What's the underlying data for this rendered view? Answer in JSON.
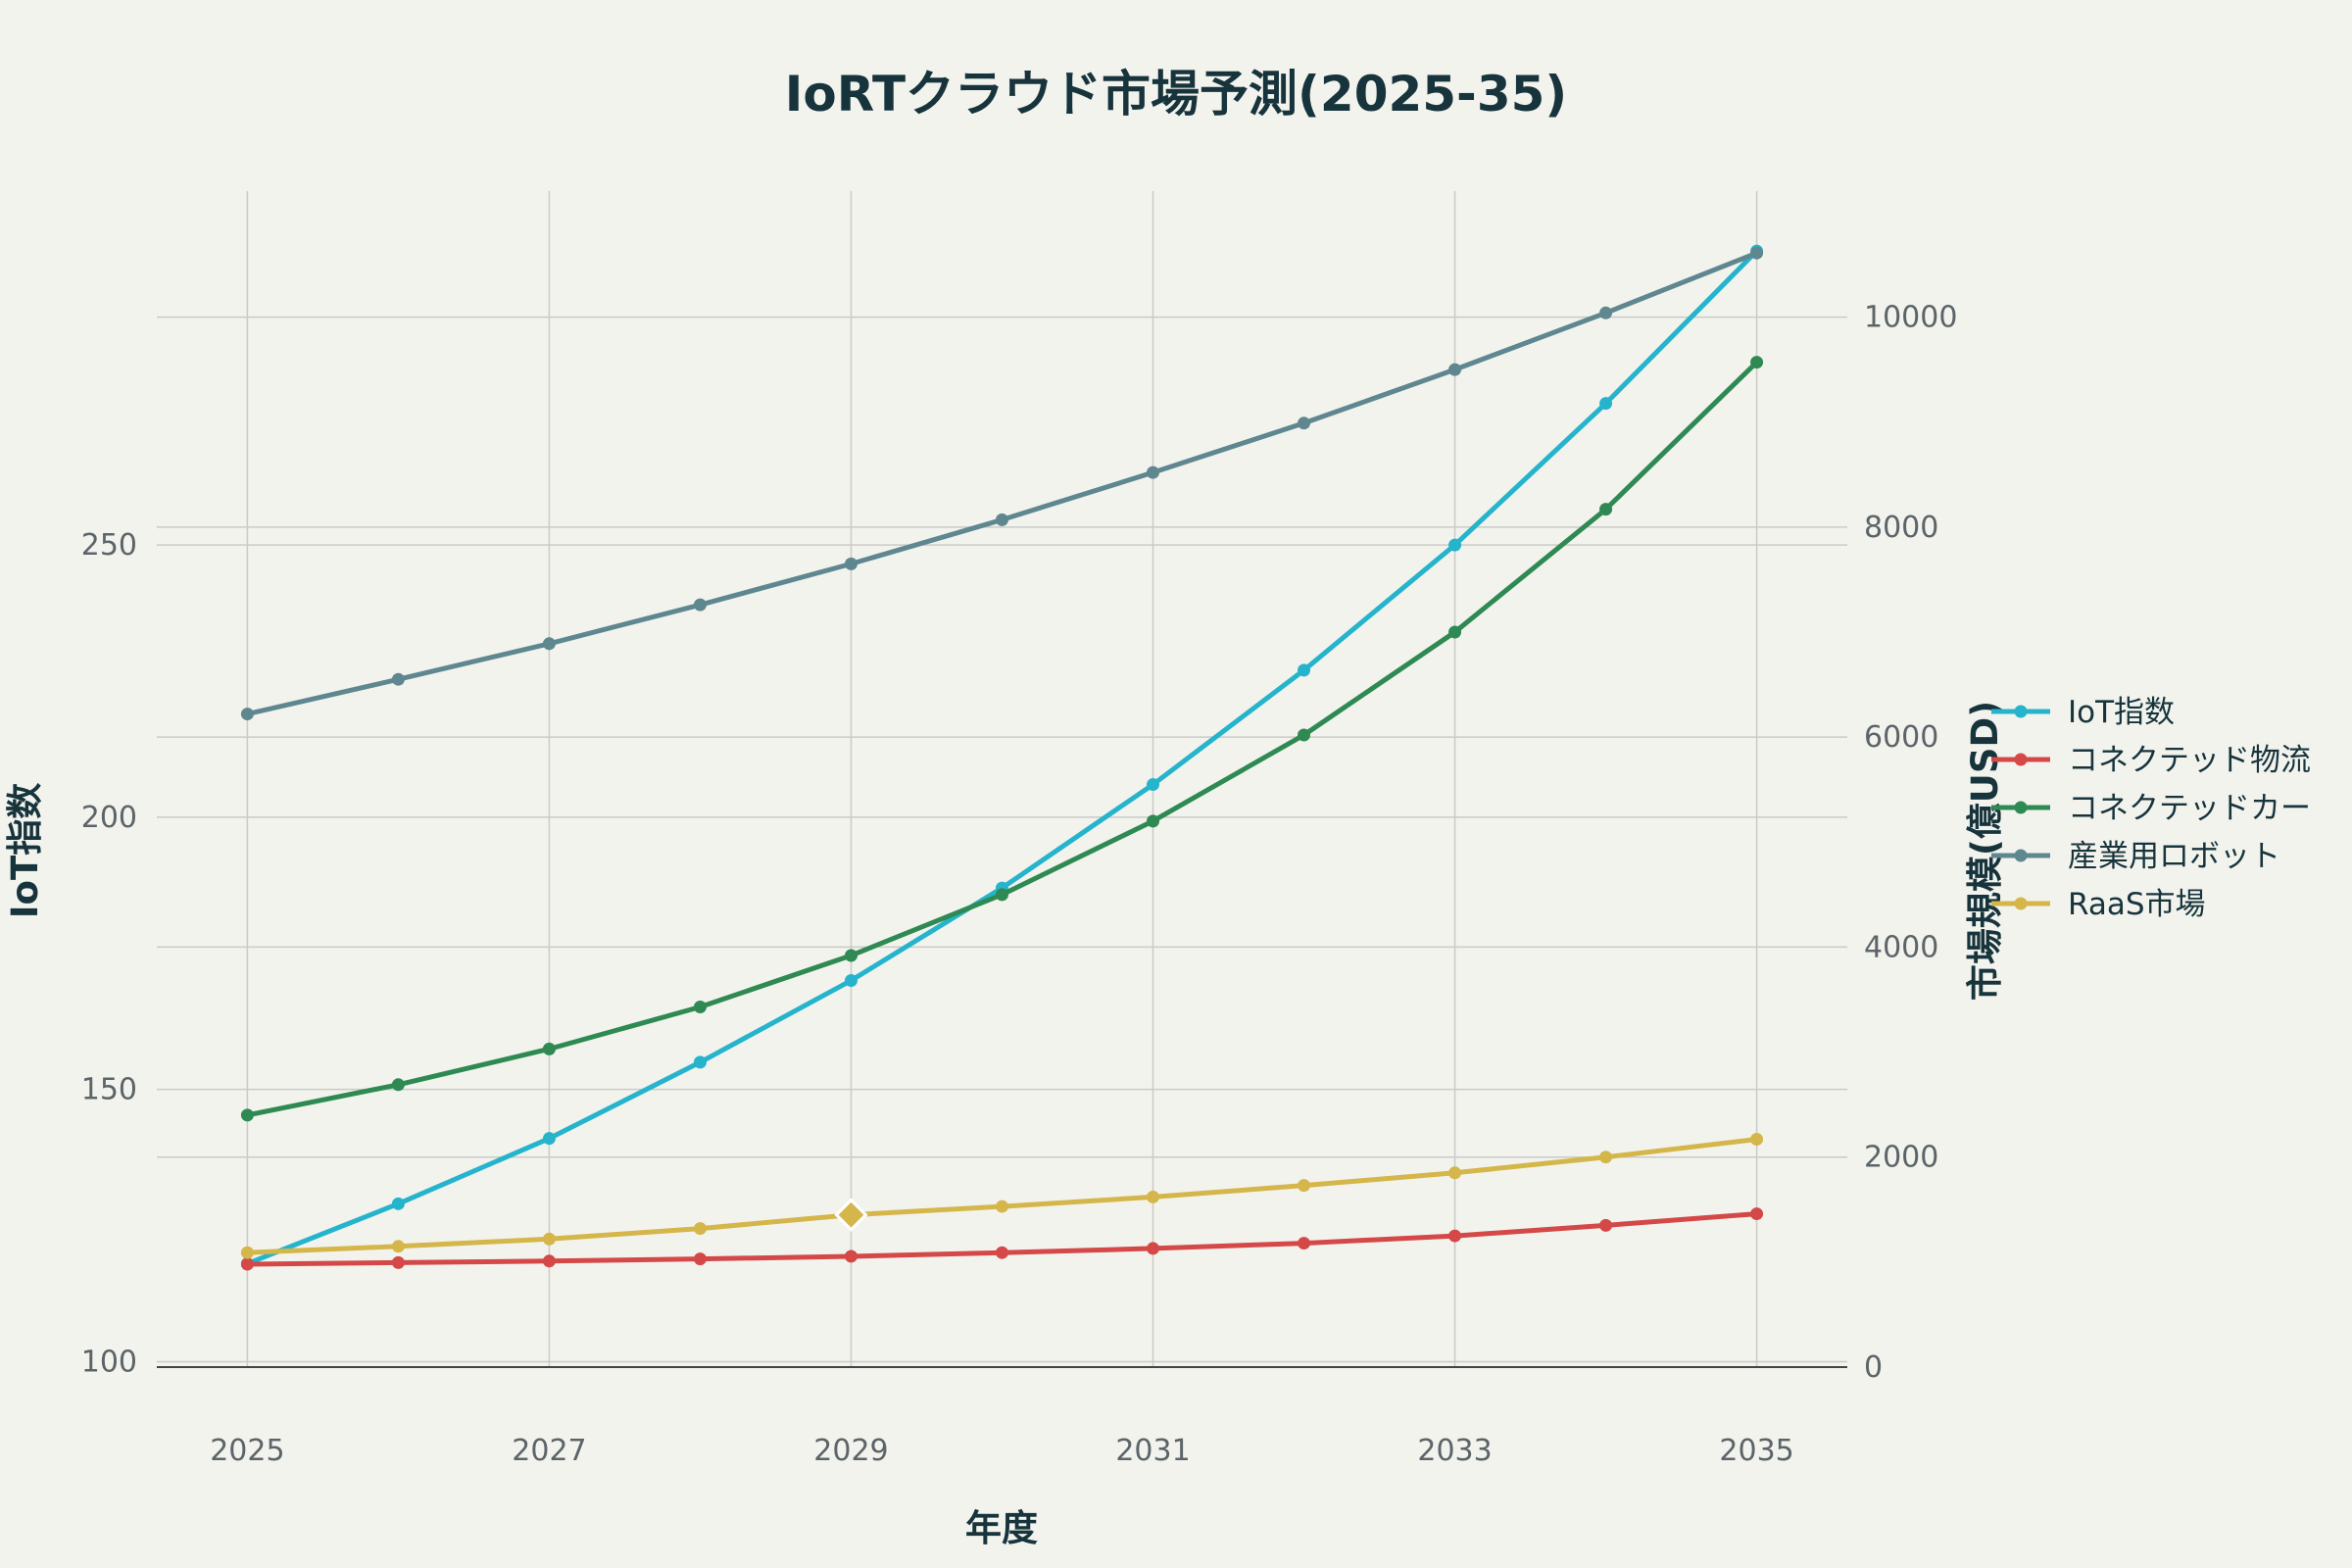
{
  "chart_data": {
    "type": "line",
    "title": "IoRTクラウド市場予測(2025-35)",
    "xlabel": "年度",
    "ylabel_left": "IoT指数",
    "ylabel_right": "市場規模(億USD)",
    "x": [
      2025,
      2026,
      2027,
      2028,
      2029,
      2030,
      2031,
      2032,
      2033,
      2034,
      2035
    ],
    "x_ticks": [
      2025,
      2027,
      2029,
      2031,
      2033,
      2035
    ],
    "x_tick_labels": [
      "2025",
      "2027",
      "2029",
      "2031",
      "2033",
      "2035"
    ],
    "xlim": [
      2024.4,
      2035.6
    ],
    "y_left_lim": [
      99,
      315
    ],
    "y_left_ticks": [
      100,
      150,
      200,
      250
    ],
    "y_left_tick_labels": [
      "100",
      "150",
      "200",
      "250"
    ],
    "y_right_lim": [
      0,
      11200
    ],
    "y_right_ticks": [
      0,
      2000,
      4000,
      6000,
      8000,
      10000
    ],
    "y_right_tick_labels": [
      "0",
      "2000",
      "4000",
      "6000",
      "8000",
      "10000"
    ],
    "grid": true,
    "legend_position": "right",
    "highlight": {
      "series": "RaaS市場",
      "x": 2029,
      "marker": "diamond"
    },
    "series": [
      {
        "name": "IoT指数",
        "axis": "left",
        "color": "#25b4cc",
        "values": [
          118,
          129,
          141,
          155,
          170,
          187,
          206,
          227,
          250,
          276,
          304
        ]
      },
      {
        "name": "コネクテッド物流",
        "axis": "right",
        "color": "#d44848",
        "values": [
          980,
          995,
          1010,
          1030,
          1055,
          1090,
          1130,
          1180,
          1250,
          1350,
          1460
        ]
      },
      {
        "name": "コネクテッドカー",
        "axis": "right",
        "color": "#2e8a52",
        "values": [
          2400,
          2690,
          3030,
          3430,
          3920,
          4500,
          5200,
          6020,
          7000,
          8170,
          9570
        ]
      },
      {
        "name": "産業用ロボット",
        "axis": "right",
        "color": "#5f8790",
        "values": [
          6220,
          6550,
          6890,
          7260,
          7650,
          8070,
          8520,
          8990,
          9500,
          10040,
          10610
        ]
      },
      {
        "name": "RaaS市場",
        "axis": "right",
        "color": "#d4b64a",
        "values": [
          1090,
          1150,
          1220,
          1320,
          1450,
          1530,
          1620,
          1730,
          1850,
          2000,
          2170
        ]
      }
    ]
  }
}
